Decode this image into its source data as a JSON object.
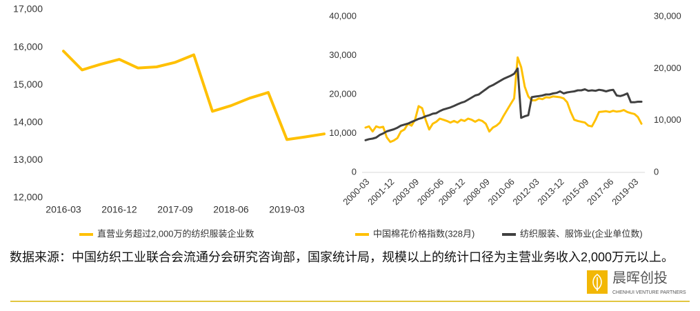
{
  "chart_data": [
    {
      "type": "line",
      "categories": [
        "2016-03",
        null,
        null,
        "2016-12",
        null,
        null,
        "2017-09",
        null,
        null,
        "2018-06",
        null,
        null,
        "2019-03",
        null,
        null
      ],
      "series": [
        {
          "name": "直营业务超过2,000万的纺织服装企业数",
          "color": "#FFC000",
          "values": [
            15900,
            15400,
            15550,
            15680,
            15450,
            15480,
            15600,
            15800,
            14300,
            14450,
            14650,
            14800,
            13550,
            13620,
            13700
          ]
        }
      ],
      "ylim": [
        12000,
        17000
      ],
      "yticks": [
        {
          "value": 12000,
          "label": "12,000"
        },
        {
          "value": 13000,
          "label": "13,000"
        },
        {
          "value": 14000,
          "label": "14,000"
        },
        {
          "value": 15000,
          "label": "15,000"
        },
        {
          "value": 16000,
          "label": "16,000"
        },
        {
          "value": 17000,
          "label": "17,000"
        }
      ]
    },
    {
      "type": "line",
      "categories": [
        "2000-03",
        null,
        null,
        null,
        null,
        null,
        null,
        "2001-12",
        null,
        null,
        null,
        null,
        null,
        null,
        "2003-09",
        null,
        null,
        null,
        null,
        null,
        null,
        "2005-06",
        null,
        null,
        null,
        null,
        null,
        "2006-12",
        null,
        null,
        null,
        null,
        null,
        null,
        "2008-09",
        null,
        null,
        null,
        null,
        null,
        null,
        "2010-06",
        null,
        null,
        null,
        null,
        null,
        null,
        "2012-03",
        null,
        null,
        null,
        null,
        null,
        null,
        "2013-12",
        null,
        null,
        null,
        null,
        null,
        null,
        "2015-09",
        null,
        null,
        null,
        null,
        null,
        null,
        "2017-06",
        null,
        null,
        null,
        null,
        null,
        null,
        "2019-03",
        null,
        null
      ],
      "series": [
        {
          "name": "中国棉花价格指数(328月)",
          "color": "#FFC000",
          "values": [
            11500,
            11800,
            10500,
            11800,
            11500,
            11700,
            9000,
            7800,
            8200,
            8800,
            10500,
            11000,
            12500,
            12000,
            13500,
            17000,
            16500,
            13500,
            11000,
            12500,
            13000,
            13800,
            13500,
            13200,
            12800,
            13200,
            12800,
            13500,
            13200,
            13800,
            13500,
            13000,
            13500,
            13200,
            12500,
            10500,
            11500,
            12000,
            12800,
            14500,
            16000,
            17500,
            19000,
            29500,
            27000,
            22000,
            19500,
            18500,
            18500,
            19000,
            18800,
            19300,
            19200,
            19500,
            19400,
            19300,
            19000,
            18000,
            15500,
            13500,
            13200,
            13000,
            12800,
            12000,
            11800,
            13500,
            15500,
            15600,
            15700,
            15500,
            15800,
            15600,
            15700,
            16000,
            15500,
            15200,
            15000,
            14200,
            12500
          ]
        },
        {
          "name": "纺织服装、服饰业(企业单位数)",
          "color": "#404040",
          "axis": "y2",
          "values": [
            6200,
            6400,
            6500,
            6700,
            7200,
            7500,
            7900,
            8100,
            8300,
            8600,
            9000,
            9200,
            9400,
            9700,
            10000,
            10300,
            10500,
            10800,
            11000,
            11300,
            11400,
            11800,
            12100,
            12300,
            12500,
            12800,
            13100,
            13400,
            13600,
            14000,
            14400,
            14800,
            15000,
            15500,
            16000,
            16500,
            16800,
            17200,
            17600,
            18000,
            18300,
            18600,
            19000,
            20000,
            10500,
            10800,
            11000,
            14500,
            14600,
            14700,
            14800,
            15000,
            15000,
            15200,
            15300,
            15600,
            15200,
            15400,
            15500,
            15600,
            15800,
            15800,
            16000,
            15700,
            15800,
            15700,
            15900,
            15800,
            15600,
            15800,
            15900,
            14800,
            14700,
            14900,
            15200,
            13500,
            13500,
            13600,
            13600
          ]
        }
      ],
      "ylim": [
        0,
        40000
      ],
      "yticks": [
        0,
        {
          "value": 10000,
          "label": "10,000"
        },
        {
          "value": 20000,
          "label": "20,000"
        },
        {
          "value": 30000,
          "label": "30,000"
        },
        {
          "value": 40000,
          "label": "40,000"
        }
      ],
      "y2lim": [
        0,
        30000
      ],
      "y2ticks": [
        0,
        {
          "value": 10000,
          "label": "10,000"
        },
        {
          "value": 20000,
          "label": "20,000"
        },
        {
          "value": 30000,
          "label": "30,000"
        }
      ]
    }
  ],
  "footnote": "数据来源：中国纺织工业联合会流通分会研究咨询部，国家统计局，规模以上的统计口径为主营业务收入2,000万元以上。",
  "logo": {
    "name": "晨晖创投",
    "subtitle": "CHENHUI VENTURE PARTNERS"
  }
}
